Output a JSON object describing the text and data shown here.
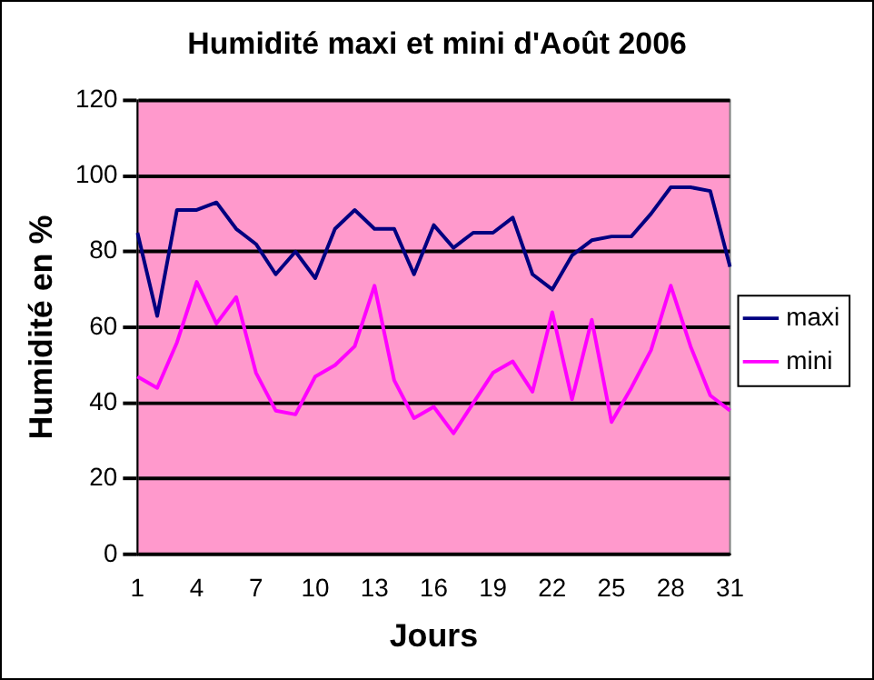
{
  "chart_data": {
    "type": "line",
    "title": "Humidité maxi et mini d'Août 2006",
    "xlabel": "Jours",
    "ylabel": "Humidité en %",
    "categories": [
      "1",
      null,
      null,
      "4",
      null,
      null,
      "7",
      null,
      null,
      "10",
      null,
      null,
      "13",
      null,
      null,
      "16",
      null,
      null,
      "19",
      null,
      null,
      "22",
      null,
      null,
      "25",
      null,
      null,
      "28",
      null,
      null,
      "31"
    ],
    "series": [
      {
        "name": "maxi",
        "color": "#000080",
        "values": [
          85,
          63,
          91,
          91,
          93,
          86,
          82,
          74,
          80,
          73,
          86,
          91,
          86,
          86,
          74,
          87,
          81,
          85,
          85,
          89,
          74,
          70,
          79,
          83,
          84,
          84,
          90,
          97,
          97,
          96,
          76
        ]
      },
      {
        "name": "mini",
        "color": "#ff00ff",
        "values": [
          47,
          44,
          56,
          72,
          61,
          68,
          48,
          38,
          37,
          47,
          50,
          55,
          71,
          46,
          36,
          39,
          32,
          40,
          48,
          51,
          43,
          64,
          41,
          62,
          35,
          44,
          54,
          71,
          55,
          42,
          38
        ]
      }
    ],
    "ylim": [
      0,
      120
    ],
    "yticks": [
      0,
      20,
      40,
      60,
      80,
      100,
      120
    ],
    "grid": "y",
    "legend": "right",
    "marker": "none",
    "line_style": "solid"
  }
}
